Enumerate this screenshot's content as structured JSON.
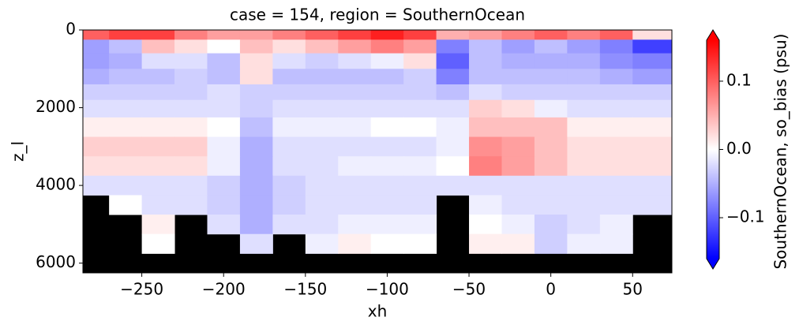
{
  "chart_data": {
    "type": "heatmap",
    "title": "case = 154, region = SouthernOcean",
    "x_label": "xh",
    "y_label": "z_l",
    "colorbar_label": "SouthernOcean, so_bias (psu)",
    "colormap": "bwr",
    "clim": [
      -0.16,
      0.16
    ],
    "colorbar_extend": "both",
    "colorbar_ticks": [
      {
        "value": -0.1,
        "label": "−0.1"
      },
      {
        "value": 0,
        "label": "0.0"
      },
      0.1
    ],
    "mask_color": "#000000",
    "xlim": [
      -286,
      74
    ],
    "ylim": [
      6250,
      0
    ],
    "xticks": [
      {
        "value": -250,
        "label": "−250"
      },
      {
        "value": -200,
        "label": "−200"
      },
      {
        "value": -150,
        "label": "−150"
      },
      {
        "value": -100,
        "label": "−100"
      },
      {
        "value": -50,
        "label": "−50"
      },
      0,
      50
    ],
    "yticks": [
      0,
      2000,
      4000,
      6000
    ],
    "x": [
      -280,
      -260,
      -240,
      -220,
      -200,
      -180,
      -160,
      -140,
      -120,
      -100,
      -80,
      -60,
      -40,
      -20,
      0,
      20,
      40,
      60
    ],
    "y": [
      100,
      400,
      800,
      1200,
      1600,
      2000,
      2500,
      3000,
      3500,
      4000,
      4500,
      5000,
      5500
    ],
    "z": [
      [
        0.1,
        0.12,
        0.12,
        0.08,
        0.06,
        0.06,
        0.08,
        0.1,
        0.12,
        0.14,
        0.12,
        0.05,
        0.06,
        0.08,
        0.1,
        0.08,
        0.1,
        0.02
      ],
      [
        -0.06,
        -0.04,
        0.04,
        0.02,
        0.0,
        0.04,
        0.02,
        0.04,
        0.06,
        0.08,
        0.06,
        -0.08,
        -0.04,
        -0.06,
        -0.04,
        -0.06,
        -0.08,
        -0.12
      ],
      [
        -0.06,
        -0.05,
        -0.02,
        -0.02,
        -0.04,
        0.02,
        -0.02,
        -0.03,
        -0.02,
        -0.01,
        0.02,
        -0.1,
        -0.04,
        -0.05,
        -0.05,
        -0.05,
        -0.07,
        -0.08
      ],
      [
        -0.05,
        -0.04,
        -0.04,
        -0.03,
        -0.04,
        0.02,
        -0.04,
        -0.04,
        -0.04,
        -0.04,
        -0.03,
        -0.08,
        -0.04,
        -0.04,
        -0.04,
        -0.04,
        -0.05,
        -0.06
      ],
      [
        -0.03,
        -0.03,
        -0.03,
        -0.03,
        -0.02,
        -0.03,
        -0.03,
        -0.03,
        -0.03,
        -0.03,
        -0.03,
        -0.04,
        -0.02,
        -0.03,
        -0.03,
        -0.03,
        -0.03,
        -0.03
      ],
      [
        -0.02,
        -0.02,
        -0.02,
        -0.02,
        -0.02,
        -0.03,
        -0.02,
        -0.02,
        -0.02,
        -0.02,
        -0.02,
        -0.02,
        0.03,
        0.02,
        -0.01,
        -0.02,
        -0.02,
        -0.02
      ],
      [
        0.01,
        0.01,
        0.01,
        0.01,
        0.0,
        -0.04,
        -0.01,
        -0.01,
        -0.01,
        0.0,
        0.0,
        -0.01,
        0.04,
        0.04,
        0.04,
        0.01,
        0.01,
        0.01
      ],
      [
        0.03,
        0.03,
        0.03,
        0.03,
        -0.01,
        -0.05,
        -0.02,
        -0.02,
        -0.02,
        -0.02,
        -0.02,
        -0.01,
        0.07,
        0.06,
        0.04,
        0.02,
        0.02,
        0.02
      ],
      [
        0.02,
        0.02,
        0.02,
        0.02,
        -0.01,
        -0.05,
        -0.02,
        -0.02,
        -0.01,
        -0.01,
        -0.01,
        0.0,
        0.08,
        0.06,
        0.04,
        0.02,
        0.02,
        0.02
      ],
      [
        -0.02,
        -0.02,
        -0.02,
        -0.02,
        -0.03,
        -0.05,
        -0.03,
        -0.02,
        -0.02,
        -0.02,
        -0.02,
        -0.02,
        -0.02,
        -0.02,
        -0.02,
        -0.02,
        -0.02,
        -0.02
      ],
      [
        null,
        0.0,
        -0.02,
        -0.02,
        -0.03,
        -0.05,
        -0.03,
        -0.02,
        -0.02,
        -0.02,
        -0.02,
        null,
        -0.01,
        -0.02,
        -0.02,
        -0.02,
        -0.02,
        -0.02
      ],
      [
        null,
        null,
        0.01,
        null,
        -0.02,
        -0.05,
        -0.02,
        -0.02,
        -0.01,
        -0.01,
        -0.01,
        null,
        0.0,
        -0.01,
        -0.03,
        -0.02,
        -0.01,
        null
      ],
      [
        null,
        null,
        0.0,
        null,
        null,
        -0.02,
        null,
        -0.01,
        0.01,
        0.0,
        0.0,
        null,
        0.01,
        0.01,
        -0.03,
        -0.01,
        -0.01,
        null
      ]
    ]
  }
}
